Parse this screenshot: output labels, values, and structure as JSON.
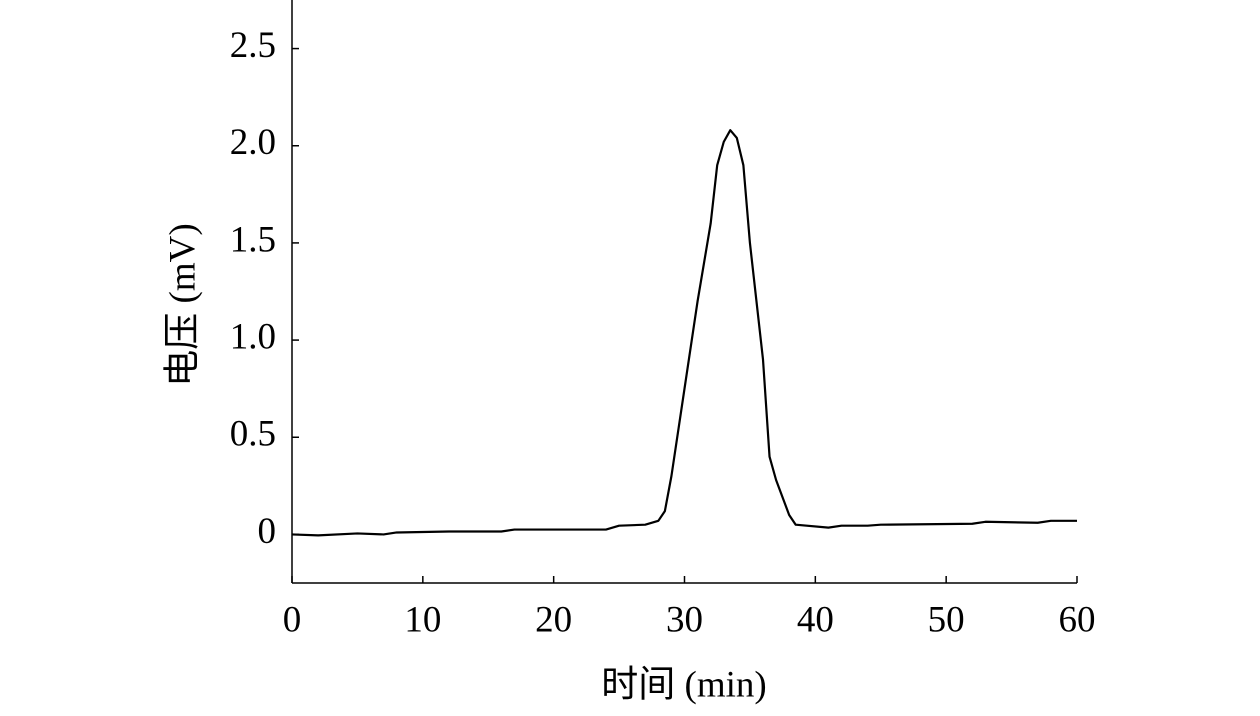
{
  "chart_data": {
    "type": "line",
    "x_label": "时间 (min)",
    "y_label": "电压 (mV)",
    "x": [
      0,
      2,
      5,
      7,
      8,
      12,
      16,
      17,
      24,
      25,
      27,
      28,
      28.5,
      29,
      30,
      31,
      32,
      32.5,
      33,
      33.5,
      34,
      34.5,
      35,
      36,
      36.5,
      37,
      38,
      38.5,
      41,
      42,
      44,
      45,
      52,
      53,
      57,
      58,
      60
    ],
    "series": [
      {
        "color": "#000000",
        "values": [
          0.0,
          -0.005,
          0.005,
          0.0,
          0.01,
          0.015,
          0.015,
          0.025,
          0.025,
          0.045,
          0.05,
          0.07,
          0.12,
          0.3,
          0.75,
          1.2,
          1.6,
          1.9,
          2.02,
          2.08,
          2.04,
          1.9,
          1.5,
          0.9,
          0.4,
          0.28,
          0.1,
          0.05,
          0.035,
          0.045,
          0.045,
          0.05,
          0.055,
          0.065,
          0.06,
          0.07,
          0.07
        ]
      }
    ],
    "xlim": [
      0,
      60
    ],
    "xticks": [
      0,
      10,
      20,
      30,
      40,
      50,
      60
    ],
    "ylim": [
      -0.25,
      2.75
    ],
    "yticks": [
      0,
      0.5,
      {
        "value": 1,
        "label": "1.0"
      },
      1.5,
      {
        "value": 2,
        "label": "2.0"
      },
      2.5
    ],
    "grid": false
  }
}
